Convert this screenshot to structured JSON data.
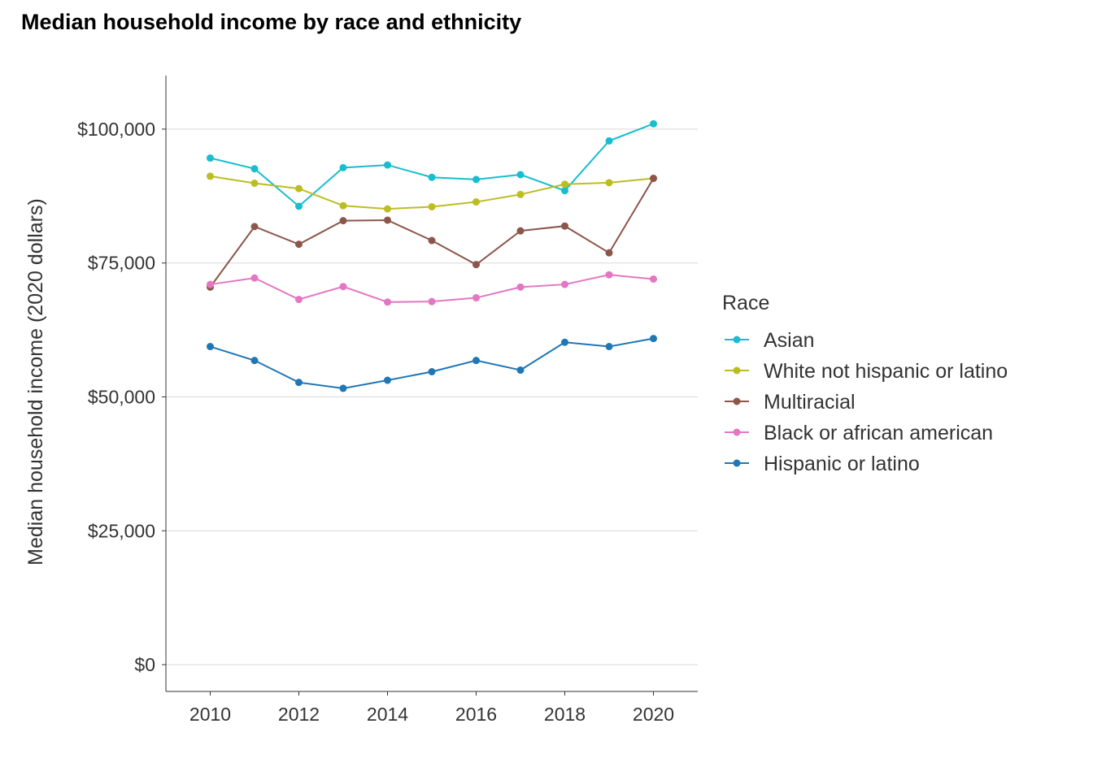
{
  "chart_data": {
    "type": "line",
    "title": "Median household income by race and ethnicity",
    "xlabel": "",
    "ylabel": "Median household income (2020 dollars)",
    "x": [
      2010,
      2011,
      2012,
      2013,
      2014,
      2015,
      2016,
      2017,
      2018,
      2019,
      2020
    ],
    "x_ticks": [
      2010,
      2012,
      2014,
      2016,
      2018,
      2020
    ],
    "x_tick_labels": [
      "2010",
      "2012",
      "2014",
      "2016",
      "2018",
      "2020"
    ],
    "xlim": [
      2009,
      2021
    ],
    "ylim": [
      -5000,
      110000
    ],
    "y_ticks": [
      0,
      25000,
      50000,
      75000,
      100000
    ],
    "y_tick_labels": [
      "$0",
      "$25,000",
      "$50,000",
      "$75,000",
      "$100,000"
    ],
    "grid": "horizontal major",
    "legend": {
      "title": "Race",
      "position": "right"
    },
    "series": [
      {
        "name": "Asian",
        "color": "#17BECF",
        "values": [
          94600,
          92600,
          85600,
          92800,
          93300,
          91000,
          90600,
          91500,
          88500,
          97800,
          101000
        ]
      },
      {
        "name": "White not hispanic or latino",
        "color": "#BCBD22",
        "values": [
          91200,
          89900,
          88900,
          85700,
          85100,
          85500,
          86400,
          87800,
          89700,
          90000,
          90800
        ]
      },
      {
        "name": "Multiracial",
        "color": "#8C564B",
        "values": [
          70500,
          81800,
          78500,
          82900,
          83000,
          79200,
          74700,
          81000,
          81900,
          76900,
          90800
        ]
      },
      {
        "name": "Black or african american",
        "color": "#E377C2",
        "values": [
          71000,
          72200,
          68200,
          70600,
          67700,
          67800,
          68500,
          70500,
          71000,
          72800,
          72000
        ]
      },
      {
        "name": "Hispanic or latino",
        "color": "#1F77B4",
        "values": [
          59400,
          56800,
          52700,
          51600,
          53100,
          54700,
          56800,
          55000,
          60200,
          59400,
          60900
        ]
      }
    ]
  }
}
